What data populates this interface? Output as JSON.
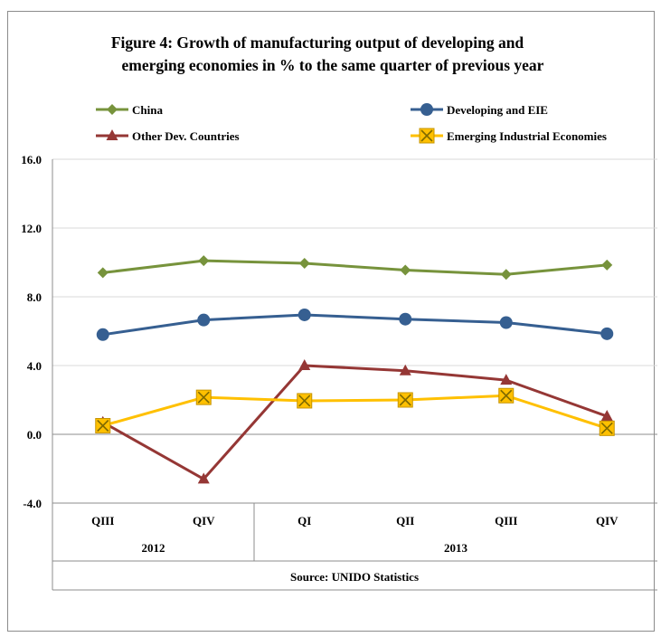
{
  "chart_data": {
    "type": "line",
    "title": "Figure 4: Growth of manufacturing output of developing and",
    "title_line2": "emerging economies in % to the same quarter of previous year",
    "categories": [
      "QIII",
      "QIV",
      "QI",
      "QII",
      "QIII",
      "QIV"
    ],
    "year_groups": [
      {
        "label": "2012",
        "span": 2
      },
      {
        "label": "2013",
        "span": 4
      }
    ],
    "source": "Source: UNIDO Statistics",
    "ylim": [
      -4,
      16
    ],
    "yticks": [
      "16.0",
      "12.0",
      "8.0",
      "4.0",
      "0.0",
      "-4.0"
    ],
    "ytick_values": [
      16,
      12,
      8,
      4,
      0,
      -4
    ],
    "grid": true,
    "legend_position": "top",
    "series": [
      {
        "name": "China",
        "color": "#77933C",
        "marker": "diamond",
        "values": [
          9.4,
          10.1,
          9.95,
          9.55,
          9.3,
          9.85
        ]
      },
      {
        "name": "Developing and EIE",
        "color": "#365F91",
        "marker": "circle",
        "values": [
          5.8,
          6.65,
          6.95,
          6.7,
          6.5,
          5.85
        ]
      },
      {
        "name": "Other Dev. Countries",
        "color": "#953735",
        "marker": "triangle",
        "values": [
          0.7,
          -2.6,
          4.0,
          3.7,
          3.15,
          1.05
        ]
      },
      {
        "name": "Emerging Industrial Economies",
        "color": "#FFC000",
        "marker": "x-square",
        "values": [
          0.5,
          2.15,
          1.95,
          2.0,
          2.25,
          0.35
        ]
      }
    ]
  }
}
